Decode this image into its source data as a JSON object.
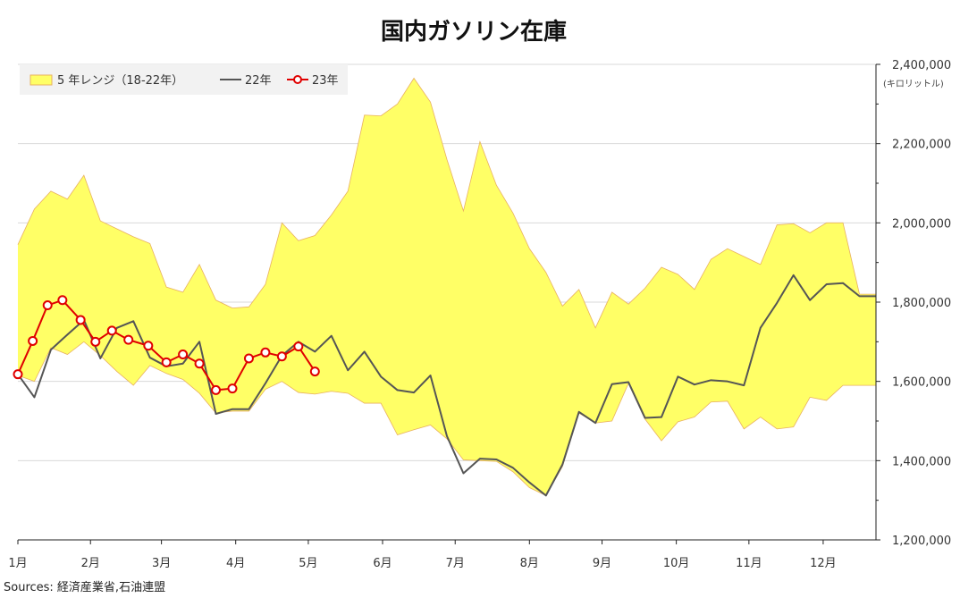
{
  "chart_data": {
    "type": "line",
    "title": "国内ガソリン在庫",
    "ylabel": "(キロリットル)",
    "ylim": [
      1200000,
      2400000
    ],
    "yticks": [
      1200000,
      1400000,
      1600000,
      1800000,
      2000000,
      2200000,
      2400000
    ],
    "ytick_labels": [
      "1,200,000",
      "1,400,000",
      "1,600,000",
      "1,800,000",
      "2,000,000",
      "2,200,000",
      "2,400,000"
    ],
    "y_axis_position": "right",
    "x_unit": "week",
    "xlim": [
      0,
      52
    ],
    "month_labels": [
      "1月",
      "2月",
      "3月",
      "4月",
      "5月",
      "6月",
      "7月",
      "8月",
      "9月",
      "10月",
      "11月",
      "12月"
    ],
    "month_week_positions": [
      0,
      4.4,
      8.7,
      13.2,
      17.6,
      22.1,
      26.5,
      31,
      35.4,
      39.9,
      44.3,
      48.8
    ],
    "grid": "horizontal",
    "legend_position": "top-left",
    "colors": {
      "range_fill": "#FFFF66",
      "range_edge": "#E8B060",
      "line22": "#555555",
      "line23": "#E00000",
      "marker_fill": "#ffffff",
      "grid": "#d9d9d9"
    },
    "range": {
      "name": "5 年レンジ（18-22年）",
      "x": [
        0,
        1,
        2,
        3,
        4,
        5,
        6,
        7,
        8,
        9,
        10,
        11,
        12,
        13,
        14,
        15,
        16,
        17,
        18,
        19,
        20,
        21,
        22,
        23,
        24,
        25,
        26,
        27,
        28,
        29,
        30,
        31,
        32,
        33,
        34,
        35,
        36,
        37,
        38,
        39,
        40,
        41,
        42,
        43,
        44,
        45,
        46,
        47,
        48,
        49,
        50,
        51,
        52
      ],
      "low": [
        1615000,
        1600000,
        1685000,
        1668000,
        1700000,
        1665000,
        1625000,
        1590000,
        1640000,
        1620000,
        1605000,
        1570000,
        1520000,
        1525000,
        1525000,
        1580000,
        1600000,
        1572000,
        1568000,
        1575000,
        1570000,
        1545000,
        1545000,
        1465000,
        1478000,
        1490000,
        1455000,
        1402000,
        1400000,
        1398000,
        1372000,
        1332000,
        1312000,
        1385000,
        1520000,
        1495000,
        1500000,
        1595000,
        1505000,
        1450000,
        1498000,
        1510000,
        1548000,
        1550000,
        1480000,
        1510000,
        1480000,
        1485000,
        1560000,
        1552000,
        1590000,
        1590000,
        1590000
      ],
      "high": [
        1945000,
        2035000,
        2080000,
        2060000,
        2120000,
        2005000,
        1985000,
        1965000,
        1948000,
        1838000,
        1825000,
        1895000,
        1805000,
        1785000,
        1788000,
        1845000,
        2000000,
        1955000,
        1968000,
        2020000,
        2080000,
        2272000,
        2270000,
        2300000,
        2365000,
        2305000,
        2160000,
        2030000,
        2205000,
        2095000,
        2025000,
        1935000,
        1875000,
        1790000,
        1832000,
        1735000,
        1825000,
        1795000,
        1835000,
        1888000,
        1870000,
        1832000,
        1908000,
        1935000,
        1915000,
        1895000,
        1995000,
        1998000,
        1975000,
        2000000,
        2000000,
        1820000,
        1820000
      ]
    },
    "series": [
      {
        "name": "22年",
        "x": [
          0,
          1,
          2,
          3,
          4,
          5,
          6,
          7,
          8,
          9,
          10,
          11,
          12,
          13,
          14,
          15,
          16,
          17,
          18,
          19,
          20,
          21,
          22,
          23,
          24,
          25,
          26,
          27,
          28,
          29,
          30,
          31,
          32,
          33,
          34,
          35,
          36,
          37,
          38,
          39,
          40,
          41,
          42,
          43,
          44,
          45,
          46,
          47,
          48,
          49,
          50,
          51,
          52
        ],
        "values": [
          1618000,
          1560000,
          1680000,
          1718000,
          1755000,
          1658000,
          1735000,
          1752000,
          1660000,
          1638000,
          1645000,
          1700000,
          1518000,
          1530000,
          1530000,
          1595000,
          1665000,
          1700000,
          1675000,
          1715000,
          1628000,
          1675000,
          1612000,
          1578000,
          1572000,
          1615000,
          1462000,
          1368000,
          1405000,
          1403000,
          1382000,
          1345000,
          1312000,
          1390000,
          1523000,
          1495000,
          1593000,
          1598000,
          1508000,
          1510000,
          1612000,
          1592000,
          1603000,
          1600000,
          1590000,
          1735000,
          1798000,
          1868000,
          1805000,
          1845000,
          1848000,
          1815000,
          1815000
        ]
      },
      {
        "name": "23年",
        "x": [
          0,
          0.9,
          1.8,
          2.7,
          3.8,
          4.7,
          5.7,
          6.7,
          7.9,
          9.0,
          10.0,
          11.0,
          12.0,
          13.0,
          14.0,
          15.0,
          16.0,
          17.0,
          18.0
        ],
        "values": [
          1618000,
          1702000,
          1792000,
          1805000,
          1755000,
          1700000,
          1728000,
          1705000,
          1690000,
          1648000,
          1668000,
          1645000,
          1578000,
          1582000,
          1658000,
          1673000,
          1663000,
          1688000,
          1625000
        ]
      }
    ],
    "source": "Sources: 経済産業省,石油連盟"
  }
}
